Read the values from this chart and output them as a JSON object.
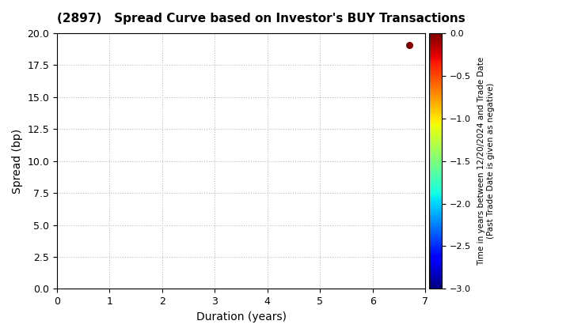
{
  "title": "(2897)   Spread Curve based on Investor's BUY Transactions",
  "xlabel": "Duration (years)",
  "ylabel": "Spread (bp)",
  "xlim": [
    0,
    7
  ],
  "ylim": [
    0,
    20
  ],
  "xticks": [
    0,
    1,
    2,
    3,
    4,
    5,
    6,
    7
  ],
  "yticks": [
    0.0,
    2.5,
    5.0,
    7.5,
    10.0,
    12.5,
    15.0,
    17.5,
    20.0
  ],
  "scatter_x": [
    6.7
  ],
  "scatter_y": [
    19.1
  ],
  "scatter_c": [
    0.0
  ],
  "cmap_vmin": -3.0,
  "cmap_vmax": 0.0,
  "colorbar_label_line1": "Time in years between 12/20/2024 and Trade Date",
  "colorbar_label_line2": "(Past Trade Date is given as negative)",
  "colorbar_ticks": [
    0.0,
    -0.5,
    -1.0,
    -1.5,
    -2.0,
    -2.5,
    -3.0
  ],
  "background_color": "#ffffff",
  "grid_color": "#bbbbbb",
  "marker_size": 30
}
